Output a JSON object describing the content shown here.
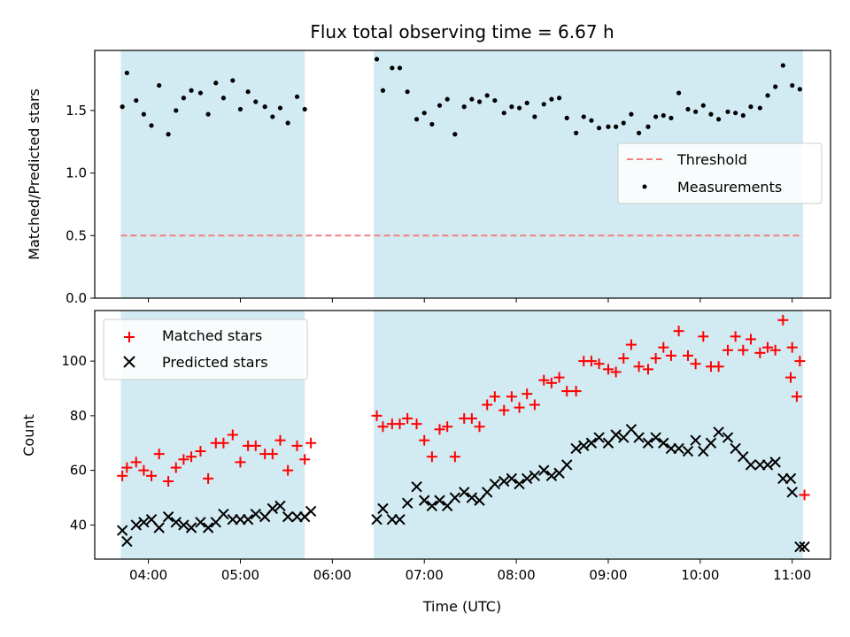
{
  "chart_data": {
    "title": "Flux total observing time = 6.67 h",
    "xlabel": "Time (UTC)",
    "x_ticks": [
      "04:00",
      "05:00",
      "06:00",
      "07:00",
      "08:00",
      "09:00",
      "10:00",
      "11:00"
    ],
    "x_range": [
      "03:25",
      "11:25"
    ],
    "shaded_intervals": [
      [
        "03:42",
        "05:42"
      ],
      [
        "06:27",
        "11:07"
      ]
    ],
    "shade_color": "#add8e6",
    "panels": [
      {
        "type": "scatter",
        "ylabel": "Matched/Predicted stars",
        "ylim": [
          0,
          1.98
        ],
        "yticks": [
          "0.0",
          "0.5",
          "1.0",
          "1.5"
        ],
        "legend_position": "right",
        "threshold": {
          "name": "Threshold",
          "value": 0.5,
          "color": "#f08080"
        },
        "series": [
          {
            "name": "Measurements",
            "marker": "dot",
            "color": "#000000",
            "x": [
              "03:43",
              "03:46",
              "03:52",
              "03:57",
              "04:02",
              "04:07",
              "04:13",
              "04:18",
              "04:23",
              "04:28",
              "04:34",
              "04:39",
              "04:44",
              "04:49",
              "04:55",
              "05:00",
              "05:05",
              "05:10",
              "05:16",
              "05:21",
              "05:26",
              "05:31",
              "05:37",
              "05:42",
              "06:29",
              "06:33",
              "06:39",
              "06:44",
              "06:49",
              "06:55",
              "07:00",
              "07:05",
              "07:10",
              "07:15",
              "07:20",
              "07:26",
              "07:31",
              "07:36",
              "07:41",
              "07:46",
              "07:52",
              "07:57",
              "08:02",
              "08:07",
              "08:12",
              "08:18",
              "08:23",
              "08:28",
              "08:33",
              "08:39",
              "08:44",
              "08:49",
              "08:54",
              "09:00",
              "09:05",
              "09:10",
              "09:15",
              "09:20",
              "09:26",
              "09:31",
              "09:36",
              "09:41",
              "09:46",
              "09:52",
              "09:57",
              "10:02",
              "10:07",
              "10:12",
              "10:18",
              "10:23",
              "10:28",
              "10:33",
              "10:39",
              "10:44",
              "10:49",
              "10:54",
              "11:00",
              "11:05"
            ],
            "y": [
              1.53,
              1.8,
              1.58,
              1.47,
              1.38,
              1.7,
              1.31,
              1.5,
              1.6,
              1.66,
              1.64,
              1.47,
              1.72,
              1.6,
              1.74,
              1.51,
              1.65,
              1.57,
              1.53,
              1.45,
              1.52,
              1.4,
              1.61,
              1.51,
              1.91,
              1.66,
              1.84,
              1.84,
              1.65,
              1.43,
              1.48,
              1.39,
              1.54,
              1.59,
              1.31,
              1.53,
              1.59,
              1.57,
              1.62,
              1.58,
              1.48,
              1.53,
              1.52,
              1.56,
              1.45,
              1.55,
              1.59,
              1.6,
              1.44,
              1.32,
              1.45,
              1.42,
              1.36,
              1.37,
              1.37,
              1.4,
              1.47,
              1.32,
              1.37,
              1.45,
              1.46,
              1.44,
              1.64,
              1.51,
              1.49,
              1.54,
              1.47,
              1.43,
              1.49,
              1.48,
              1.46,
              1.53,
              1.52,
              1.62,
              1.69,
              1.86,
              1.7,
              1.67
            ]
          }
        ]
      },
      {
        "type": "scatter",
        "ylabel": "Count",
        "ylim": [
          27.5,
          118.5
        ],
        "yticks": [
          "40",
          "60",
          "80",
          "100"
        ],
        "legend_position": "top-left",
        "series": [
          {
            "name": "Matched stars",
            "marker": "plus",
            "color": "#ff0000",
            "x": [
              "03:43",
              "03:46",
              "03:52",
              "03:57",
              "04:02",
              "04:07",
              "04:13",
              "04:18",
              "04:23",
              "04:28",
              "04:34",
              "04:39",
              "04:44",
              "04:49",
              "04:55",
              "05:00",
              "05:05",
              "05:10",
              "05:16",
              "05:21",
              "05:26",
              "05:31",
              "05:37",
              "05:42",
              "06:29",
              "06:33",
              "06:39",
              "06:44",
              "06:49",
              "06:55",
              "07:00",
              "07:05",
              "07:10",
              "07:15",
              "07:20",
              "07:26",
              "07:31",
              "07:36",
              "07:41",
              "07:46",
              "07:52",
              "07:57",
              "08:02",
              "08:07",
              "08:12",
              "08:18",
              "08:23",
              "08:28",
              "08:33",
              "08:39",
              "08:44",
              "08:49",
              "08:54",
              "09:00",
              "09:05",
              "09:10",
              "09:15",
              "09:20",
              "09:26",
              "09:31",
              "09:36",
              "09:41",
              "09:46",
              "09:52",
              "09:57",
              "10:02",
              "10:07",
              "10:12",
              "10:18",
              "10:23",
              "10:28",
              "10:33",
              "10:39",
              "10:44",
              "10:49",
              "10:54",
              "11:00",
              "11:05"
            ],
            "y": [
              58,
              61,
              63,
              60,
              58,
              66,
              56,
              61,
              64,
              65,
              67,
              57,
              70,
              70,
              73,
              63,
              69,
              69,
              66,
              66,
              71,
              60,
              69,
              64,
              80,
              76,
              77,
              77,
              79,
              77,
              71,
              65,
              75,
              76,
              65,
              79,
              79,
              76,
              84,
              87,
              82,
              87,
              83,
              88,
              84,
              93,
              92,
              94,
              89,
              89,
              100,
              100,
              99,
              97,
              96,
              101,
              106,
              98,
              97,
              101,
              105,
              102,
              111,
              102,
              99,
              109,
              98,
              98,
              104,
              109,
              104,
              108,
              103,
              105,
              104,
              115,
              105,
              100
            ]
          },
          {
            "name": "Predicted stars",
            "marker": "x",
            "color": "#000000",
            "x": [
              "03:43",
              "03:46",
              "03:52",
              "03:57",
              "04:02",
              "04:07",
              "04:13",
              "04:18",
              "04:23",
              "04:28",
              "04:34",
              "04:39",
              "04:44",
              "04:49",
              "04:55",
              "05:00",
              "05:05",
              "05:10",
              "05:16",
              "05:21",
              "05:26",
              "05:31",
              "05:37",
              "05:42",
              "06:29",
              "06:33",
              "06:39",
              "06:44",
              "06:49",
              "06:55",
              "07:00",
              "07:05",
              "07:10",
              "07:15",
              "07:20",
              "07:26",
              "07:31",
              "07:36",
              "07:41",
              "07:46",
              "07:52",
              "07:57",
              "08:02",
              "08:07",
              "08:12",
              "08:18",
              "08:23",
              "08:28",
              "08:33",
              "08:39",
              "08:44",
              "08:49",
              "08:54",
              "09:00",
              "09:05",
              "09:10",
              "09:15",
              "09:20",
              "09:26",
              "09:31",
              "09:36",
              "09:41",
              "09:46",
              "09:52",
              "09:57",
              "10:02",
              "10:07",
              "10:12",
              "10:18",
              "10:23",
              "10:28",
              "10:33",
              "10:39",
              "10:44",
              "10:49",
              "10:54",
              "11:00",
              "11:05"
            ],
            "y": [
              38,
              34,
              40,
              41,
              42,
              39,
              43,
              41,
              40,
              39,
              41,
              39,
              41,
              44,
              42,
              42,
              42,
              44,
              43,
              46,
              47,
              43,
              43,
              43,
              42,
              46,
              42,
              42,
              48,
              54,
              49,
              47,
              49,
              47,
              50,
              52,
              50,
              49,
              52,
              55,
              56,
              57,
              55,
              57,
              58,
              60,
              58,
              59,
              62,
              68,
              69,
              70,
              72,
              70,
              73,
              72,
              75,
              72,
              70,
              72,
              70,
              68,
              68,
              67,
              71,
              67,
              70,
              74,
              72,
              68,
              65,
              62,
              62,
              62,
              63,
              57,
              52,
              32
            ]
          }
        ],
        "extra_points": [
          {
            "series": "Matched stars",
            "x": "05:46",
            "y": 70
          },
          {
            "series": "Matched stars",
            "x": "10:59",
            "y": 94
          },
          {
            "series": "Matched stars",
            "x": "11:03",
            "y": 87
          },
          {
            "series": "Matched stars",
            "x": "11:08",
            "y": 51
          },
          {
            "series": "Predicted stars",
            "x": "05:46",
            "y": 45
          },
          {
            "series": "Predicted stars",
            "x": "10:59",
            "y": 57
          },
          {
            "series": "Predicted stars",
            "x": "11:08",
            "y": 32
          }
        ]
      }
    ]
  }
}
